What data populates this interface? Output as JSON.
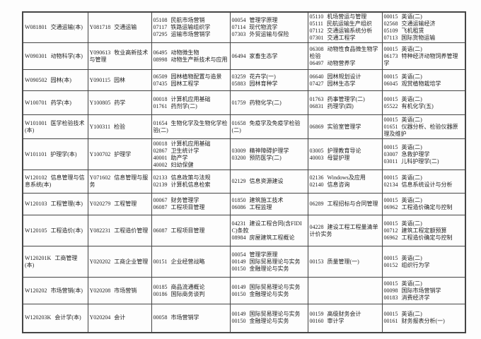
{
  "colors": {
    "border": "#454545",
    "text": "#1e1e1e",
    "page_background": "#fdfdfd"
  },
  "table": {
    "rows": [
      {
        "major": {
          "code": "W081801",
          "name": "交通运输(本)"
        },
        "exam_program": {
          "code": "Y081718",
          "name": "交通运输"
        },
        "sessions": [
          [
            {
              "code": "05108",
              "title": "民航市场营销"
            },
            {
              "code": "07117",
              "title": "铁路运输组织学"
            },
            {
              "code": "07295",
              "title": "运输市场营销学"
            }
          ],
          [
            {
              "code": "00054",
              "title": "管理学原理"
            },
            {
              "code": "07114",
              "title": "现代物流学"
            },
            {
              "code": "07303",
              "title": "外贸运输与保险"
            }
          ],
          [
            {
              "code": "05110",
              "title": "机场营运与管理"
            },
            {
              "code": "05111",
              "title": "民航运输生产组织"
            },
            {
              "code": "07112",
              "title": "交通运输系统分析"
            },
            {
              "code": "07301",
              "title": "交通工程学"
            }
          ],
          [
            {
              "code": "00015",
              "title": "英语(二)"
            },
            {
              "code": "02568",
              "title": "交通运输经济"
            },
            {
              "code": "05109",
              "title": "飞机租赁"
            },
            {
              "code": "07113",
              "title": "国际货物运输"
            }
          ]
        ]
      },
      {
        "major": {
          "code": "W090301",
          "name": "动物科学(本)"
        },
        "exam_program": {
          "code": "Y090613",
          "name": "牧业高新技术与管理"
        },
        "sessions": [
          [
            {
              "code": "06495",
              "title": "动物微生物"
            },
            {
              "code": "08998",
              "title": "动物生产新技术与应用"
            }
          ],
          [
            {
              "code": "06494",
              "title": "家畜生态学"
            }
          ],
          [
            {
              "code": "06308",
              "title": "动物性食品微生物学检验"
            },
            {
              "code": "06497",
              "title": "动物营养学"
            }
          ],
          [
            {
              "code": "00015",
              "title": "英语(二)"
            },
            {
              "code": "06173",
              "title": "特种经济动物饲养管理学"
            }
          ]
        ]
      },
      {
        "major": {
          "code": "W090502",
          "name": "园林(本)"
        },
        "exam_program": {
          "code": "Y090115",
          "name": "园林"
        },
        "sessions": [
          [
            {
              "code": "06509",
              "title": "园林植物配置与造景"
            },
            {
              "code": "07435",
              "title": "园林工程学"
            }
          ],
          [
            {
              "code": "03259",
              "title": "花卉学(一)"
            },
            {
              "code": "05883",
              "title": "园林育种学"
            }
          ],
          [
            {
              "code": "06640",
              "title": "园林规划设计"
            },
            {
              "code": "07427",
              "title": "园林生态学"
            }
          ],
          [
            {
              "code": "00015",
              "title": "英语(二)"
            },
            {
              "code": "06045",
              "title": "观赏植物栽培学"
            }
          ]
        ]
      },
      {
        "major": {
          "code": "W100701",
          "name": "药学(本)"
        },
        "exam_program": {
          "code": "Y100805",
          "name": "药学"
        },
        "sessions": [
          [
            {
              "code": "00018",
              "title": "计算机应用基础"
            },
            {
              "code": "01761",
              "title": "药剂学(二)"
            }
          ],
          [
            {
              "code": "01759",
              "title": "药物化学(二)"
            }
          ],
          [
            {
              "code": "01763",
              "title": "药事管理学(二)"
            },
            {
              "code": "06831",
              "title": "药理学(四)"
            }
          ],
          [
            {
              "code": "00015",
              "title": "英语(二)"
            },
            {
              "code": "05522",
              "title": "有机化学(五)"
            }
          ]
        ]
      },
      {
        "major": {
          "code": "W101001",
          "name": "医学检验技术(本)"
        },
        "exam_program": {
          "code": "Y100311",
          "name": "检验"
        },
        "sessions": [
          [
            {
              "code": "01654",
              "title": "生物化学及生物化学检验(二)"
            }
          ],
          [
            {
              "code": "01658",
              "title": "免疫学及免疫学检验(二)"
            }
          ],
          [
            {
              "code": "06869",
              "title": "实验室管理学"
            }
          ],
          [
            {
              "code": "00015",
              "title": "英语(二)"
            },
            {
              "code": "01651",
              "title": "仪器分析、检验仪器原理及维护"
            }
          ]
        ]
      },
      {
        "major": {
          "code": "W101101",
          "name": "护理学(本)"
        },
        "exam_program": {
          "code": "Y100702",
          "name": "护理学"
        },
        "sessions": [
          [
            {
              "code": "00018",
              "title": "计算机应用基础"
            },
            {
              "code": "02867",
              "title": "卫生统计学"
            },
            {
              "code": "40001",
              "title": "助产学"
            },
            {
              "code": "40002",
              "title": "妇幼保健"
            }
          ],
          [
            {
              "code": "03009",
              "title": "精神障碍护理学"
            },
            {
              "code": "03200",
              "title": "预防医学(二)"
            }
          ],
          [
            {
              "code": "03005",
              "title": "护理教育导论"
            },
            {
              "code": "40003",
              "title": "母婴护理"
            }
          ],
          [
            {
              "code": "00015",
              "title": "英语(二)"
            },
            {
              "code": "03007",
              "title": "急救护理学"
            },
            {
              "code": "03011",
              "title": "儿科护理学(二)"
            }
          ]
        ]
      },
      {
        "major": {
          "code": "W120102",
          "name": "信息管理与信息系统(本)"
        },
        "exam_program": {
          "code": "Y071602",
          "name": "信息管理与服务"
        },
        "sessions": [
          [
            {
              "code": "02133",
              "title": "信息政策与法规"
            },
            {
              "code": "02139",
              "title": "计算机信息检索"
            }
          ],
          [
            {
              "code": "02129",
              "title": "信息资源建设"
            }
          ],
          [
            {
              "code": "02136",
              "title": "Windows及应用"
            },
            {
              "code": "02140",
              "title": "信息咨询"
            }
          ],
          [
            {
              "code": "00015",
              "title": "英语(二)"
            },
            {
              "code": "02134",
              "title": "信息系统设计与分析"
            }
          ]
        ]
      },
      {
        "major": {
          "code": "W120103",
          "name": "工程管理(本)"
        },
        "exam_program": {
          "code": "Y020279",
          "name": "工程管理"
        },
        "sessions": [
          [
            {
              "code": "00067",
              "title": "财务管理学"
            },
            {
              "code": "06087",
              "title": "工程项目管理"
            }
          ],
          [
            {
              "code": "01850",
              "title": "建筑施工技术"
            },
            {
              "code": "06086",
              "title": "工程监理"
            }
          ],
          [
            {
              "code": "06289",
              "title": "工程招标与合同管理"
            }
          ],
          [
            {
              "code": "00015",
              "title": "英语(二)"
            },
            {
              "code": "06962",
              "title": "工程造价确定与控制"
            }
          ]
        ]
      },
      {
        "major": {
          "code": "W120105",
          "name": "工程造价(本)"
        },
        "exam_program": {
          "code": "Y082231",
          "name": "工程造价管理"
        },
        "sessions": [
          [
            {
              "code": "06087",
              "title": "工程项目管理"
            }
          ],
          [
            {
              "code": "04231",
              "title": "建设工程合同(含FIDIC)条款"
            },
            {
              "code": "08984",
              "title": "房屋建筑工程概论"
            }
          ],
          [
            {
              "code": "04228",
              "title": "建设工程工程量清单计价实务"
            }
          ],
          [
            {
              "code": "00015",
              "title": "英语(二)"
            },
            {
              "code": "00712",
              "title": "建筑工程定额预算"
            },
            {
              "code": "06962",
              "title": "工程造价确定与控制"
            }
          ]
        ]
      },
      {
        "major": {
          "code": "W120201K",
          "name": "工商管理(本)"
        },
        "exam_program": {
          "code": "Y020202",
          "name": "工商企业管理"
        },
        "sessions": [
          [
            {
              "code": "00151",
              "title": "企业经营战略"
            }
          ],
          [
            {
              "code": "00054",
              "title": "管理学原理"
            },
            {
              "code": "00149",
              "title": "国际贸易理论与实务"
            },
            {
              "code": "00150",
              "title": "金融理论与实务"
            }
          ],
          [
            {
              "code": "00153",
              "title": "质量管理(一)"
            }
          ],
          [
            {
              "code": "00015",
              "title": "英语(二)"
            },
            {
              "code": "00152",
              "title": "组织行为学"
            }
          ]
        ]
      },
      {
        "major": {
          "code": "W120202",
          "name": "市场营销(本)"
        },
        "exam_program": {
          "code": "Y020208",
          "name": "市场营销"
        },
        "sessions": [
          [
            {
              "code": "00185",
              "title": "商品流通概论"
            },
            {
              "code": "00186",
              "title": "国际商务谈判"
            }
          ],
          [
            {
              "code": "00149",
              "title": "国际贸易理论与实务"
            },
            {
              "code": "00150",
              "title": "金融理论与实务"
            }
          ],
          [],
          [
            {
              "code": "00015",
              "title": "英语(二)"
            },
            {
              "code": "00098",
              "title": "国际市场营销学"
            },
            {
              "code": "00183",
              "title": "消费经济学"
            }
          ]
        ]
      },
      {
        "major": {
          "code": "W120203K",
          "name": "会计学(本)"
        },
        "exam_program": {
          "code": "Y020204",
          "name": "会计"
        },
        "sessions": [
          [
            {
              "code": "00058",
              "title": "市场营销学"
            }
          ],
          [
            {
              "code": "00149",
              "title": "国际贸易理论与实务"
            },
            {
              "code": "00150",
              "title": "金融理论与实务"
            }
          ],
          [
            {
              "code": "00159",
              "title": "高级财务会计"
            },
            {
              "code": "00160",
              "title": "审计学"
            }
          ],
          [
            {
              "code": "00015",
              "title": "英语(二)"
            },
            {
              "code": "00161",
              "title": "财务报表分析(一)"
            }
          ]
        ]
      }
    ]
  }
}
